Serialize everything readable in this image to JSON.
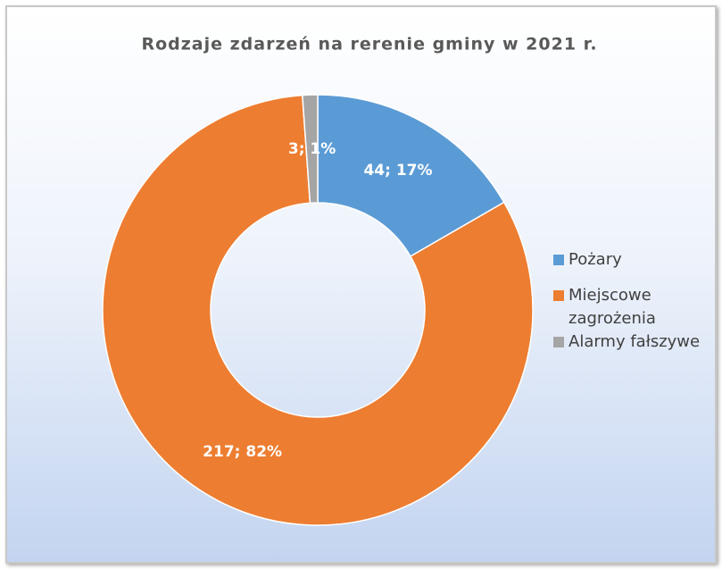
{
  "chart_data": {
    "type": "donut",
    "title": "Rodzaje zdarzeń na rerenie gminy w 2021 r.",
    "categories": [
      "Pożary",
      "Miejscowe zagrożenia",
      "Alarmy fałszywe"
    ],
    "values": [
      44,
      217,
      3
    ],
    "value_labels": [
      "44; 17%",
      "217; 82%",
      "3; 1%"
    ],
    "colors": [
      "#5b9bd5",
      "#ed7d31",
      "#a5a5a5"
    ],
    "legend": "right"
  }
}
